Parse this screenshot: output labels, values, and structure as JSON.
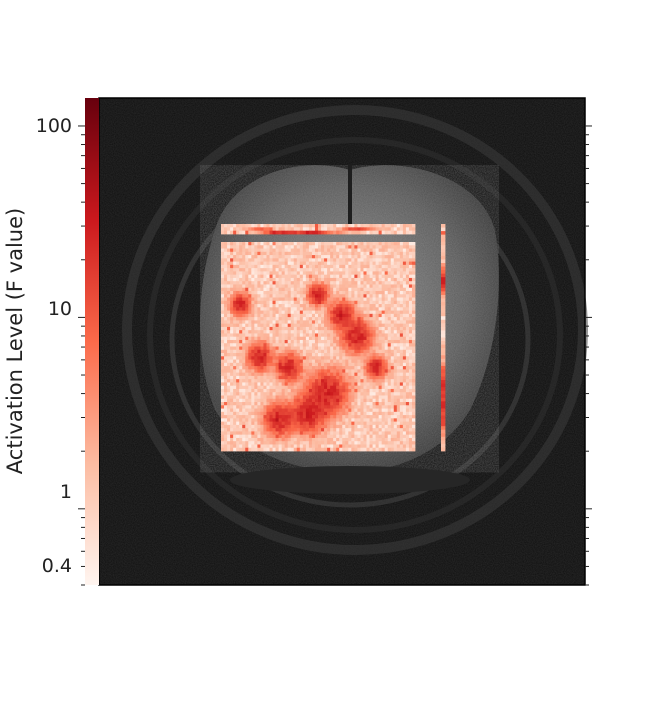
{
  "chart_data": {
    "type": "heatmap",
    "title": "",
    "colorbar": {
      "label": "Activation Level (F value)",
      "scale": "log",
      "range": [
        0.4,
        140
      ],
      "ticks": [
        {
          "value": 100,
          "label": "100"
        },
        {
          "value": 10,
          "label": "10"
        },
        {
          "value": 1,
          "label": "1"
        },
        {
          "value": 0.4,
          "label": "0.4"
        }
      ],
      "colors": [
        "#fff5f0",
        "#fcbba1",
        "#fb6a4a",
        "#cb181d",
        "#67000d"
      ]
    },
    "background": {
      "description_tag": "grayscale axial brain MRI slice",
      "color_dark": "#0e0e0e"
    },
    "overlay": {
      "main_block": {
        "rows": 64,
        "cols": 64,
        "typical_value": 1.5,
        "hotspot_value": 30
      },
      "top_strip": {
        "typical_value": 1.5
      },
      "right_strip": {
        "typical_value": 1.5
      }
    }
  }
}
